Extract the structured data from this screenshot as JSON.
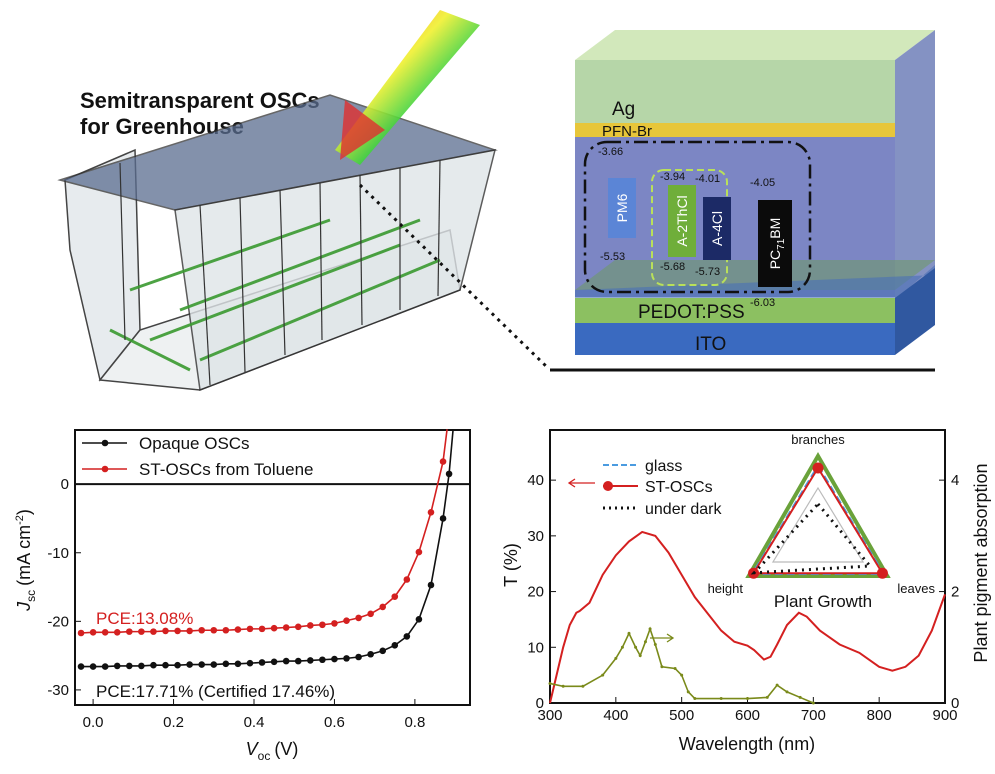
{
  "header": {
    "title_line1": "Semitransparent OSCs",
    "title_line2": "for Greenhouse"
  },
  "device": {
    "layers": [
      "Ag",
      "PFN-Br",
      "PEDOT:PSS",
      "ITO"
    ],
    "materials": [
      {
        "name": "PM6",
        "lumo": "-3.66",
        "homo": "-5.53",
        "color": "#5b85d6"
      },
      {
        "name": "A-2ThCl",
        "lumo": "-3.94",
        "homo": "-5.68",
        "color": "#6fae3a"
      },
      {
        "name": "A-4Cl",
        "lumo": "-4.01",
        "homo": "-5.73",
        "color": "#1c2a66"
      },
      {
        "name": "PC71BM",
        "name_main": "PC",
        "name_sub": "71",
        "name_tail": "BM",
        "lumo": "-4.05",
        "homo": "-6.03",
        "color": "#0b0b0b"
      }
    ]
  },
  "chart_data": [
    {
      "type": "line",
      "xlabel": "V",
      "xlabel_sub": "oc",
      "xlabel_unit": "(V)",
      "ylabel": "J",
      "ylabel_sub": "sc",
      "ylabel_unit": "(mA cm",
      "ylabel_sup": "-2",
      "ylabel_close": ")",
      "xlim": [
        -0.045,
        0.937
      ],
      "ylim": [
        -32.2,
        7.9
      ],
      "xticks": [
        "0.0",
        "0.2",
        "0.4",
        "0.6",
        "0.8"
      ],
      "yticks": [
        "0",
        "-10",
        "-20",
        "-30"
      ],
      "legend": "top-left",
      "series": [
        {
          "name": "Opaque OSCs",
          "color": "#111111",
          "x": [
            -0.03,
            0,
            0.03,
            0.06,
            0.09,
            0.12,
            0.15,
            0.18,
            0.21,
            0.24,
            0.27,
            0.3,
            0.33,
            0.36,
            0.39,
            0.42,
            0.45,
            0.48,
            0.51,
            0.54,
            0.57,
            0.6,
            0.63,
            0.66,
            0.69,
            0.72,
            0.75,
            0.78,
            0.81,
            0.84,
            0.87,
            0.885,
            0.895
          ],
          "y": [
            -26.6,
            -26.6,
            -26.6,
            -26.5,
            -26.5,
            -26.5,
            -26.4,
            -26.4,
            -26.4,
            -26.3,
            -26.3,
            -26.3,
            -26.2,
            -26.2,
            -26.1,
            -26.0,
            -25.9,
            -25.8,
            -25.8,
            -25.7,
            -25.6,
            -25.5,
            -25.4,
            -25.2,
            -24.8,
            -24.3,
            -23.5,
            -22.2,
            -19.7,
            -14.7,
            -5.0,
            1.5,
            8.0
          ]
        },
        {
          "name": "ST-OSCs from Toluene",
          "color": "#d42020",
          "x": [
            -0.03,
            0,
            0.03,
            0.06,
            0.09,
            0.12,
            0.15,
            0.18,
            0.21,
            0.24,
            0.27,
            0.3,
            0.33,
            0.36,
            0.39,
            0.42,
            0.45,
            0.48,
            0.51,
            0.54,
            0.57,
            0.6,
            0.63,
            0.66,
            0.69,
            0.72,
            0.75,
            0.78,
            0.81,
            0.84,
            0.87,
            0.88
          ],
          "y": [
            -21.7,
            -21.6,
            -21.6,
            -21.6,
            -21.5,
            -21.5,
            -21.5,
            -21.4,
            -21.4,
            -21.4,
            -21.3,
            -21.3,
            -21.3,
            -21.2,
            -21.1,
            -21.1,
            -21.0,
            -20.9,
            -20.8,
            -20.6,
            -20.5,
            -20.3,
            -19.9,
            -19.5,
            -18.9,
            -17.9,
            -16.4,
            -13.9,
            -9.9,
            -4.1,
            3.3,
            8.0
          ]
        }
      ],
      "annotations": [
        {
          "text": "PCE:13.08%",
          "color": "#d42020"
        },
        {
          "text": "PCE:17.71% (Certified 17.46%)",
          "color": "#111111"
        }
      ]
    },
    {
      "type": "line",
      "xlabel": "Wavelength (nm)",
      "ylabel": "T (%)",
      "y2label": "Plant pigment absorption",
      "xlim": [
        300,
        900
      ],
      "ylim": [
        0,
        49
      ],
      "y2lim": [
        0,
        4.9
      ],
      "xticks": [
        "300",
        "400",
        "500",
        "600",
        "700",
        "800",
        "900"
      ],
      "yticks": [
        "0",
        "10",
        "20",
        "30",
        "40"
      ],
      "y2ticks": [
        "0",
        "2",
        "4"
      ],
      "series": [
        {
          "axis": "left",
          "color": "#d42020",
          "x": [
            300,
            310,
            320,
            330,
            340,
            345,
            360,
            380,
            400,
            420,
            440,
            460,
            480,
            500,
            520,
            540,
            560,
            580,
            600,
            610,
            625,
            635,
            645,
            660,
            678,
            690,
            710,
            740,
            770,
            800,
            820,
            840,
            860,
            880,
            900
          ],
          "y": [
            0,
            5,
            10,
            14,
            16.2,
            16.5,
            18,
            23,
            26.5,
            29,
            30.7,
            30,
            27,
            23,
            19,
            16,
            13,
            11,
            10.3,
            9.5,
            7.8,
            8.3,
            10.5,
            14,
            16.2,
            15.5,
            13,
            10.5,
            9,
            6.5,
            5.8,
            6.5,
            8.5,
            13,
            19.5
          ]
        },
        {
          "axis": "right",
          "color": "#7a8a1a",
          "x": [
            300,
            320,
            350,
            380,
            400,
            410,
            420,
            430,
            437,
            445,
            452,
            460,
            470,
            490,
            500,
            510,
            520,
            560,
            600,
            630,
            645,
            660,
            680,
            700
          ],
          "y": [
            0.35,
            0.3,
            0.3,
            0.5,
            0.8,
            1.0,
            1.25,
            1.0,
            0.85,
            1.1,
            1.33,
            1.05,
            0.65,
            0.62,
            0.5,
            0.2,
            0.08,
            0.08,
            0.08,
            0.1,
            0.32,
            0.2,
            0.1,
            0
          ]
        }
      ],
      "inset": {
        "title": "Plant Growth",
        "axes": [
          "branches",
          "leaves",
          "height"
        ],
        "legend": [
          {
            "name": "glass",
            "color": "#4a9be0",
            "style": "dashed"
          },
          {
            "name": "ST-OSCs",
            "color": "#d42020",
            "style": "solid-marker"
          },
          {
            "name": "under dark",
            "color": "#111111",
            "style": "dotted"
          }
        ],
        "frame_color": "#6aa23a",
        "series": [
          {
            "name": "glass",
            "values": [
              0.88,
              0.95,
              0.95
            ]
          },
          {
            "name": "ST-OSCs",
            "values": [
              0.85,
              0.93,
              0.93
            ]
          },
          {
            "name": "",
            "color": "#bbbbbb",
            "values": [
              0.6,
              0.65,
              0.65
            ]
          },
          {
            "name": "under dark",
            "values": [
              0.4,
              0.75,
              0.92
            ]
          }
        ]
      }
    }
  ]
}
